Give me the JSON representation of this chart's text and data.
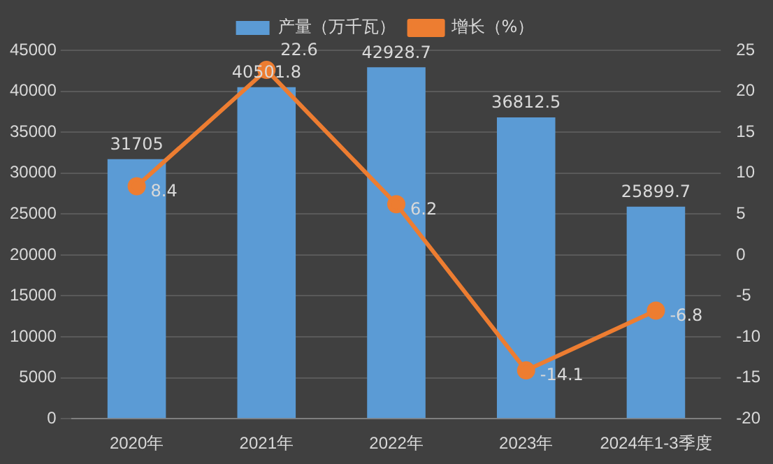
{
  "chart_data": {
    "type": "bar",
    "categories": [
      "2020年",
      "2021年",
      "2022年",
      "2023年",
      "2024年1-3季度"
    ],
    "series": [
      {
        "name": "产量（万千瓦）",
        "color": "#5b9bd5",
        "values": [
          31705,
          40501.8,
          42928.7,
          36812.5,
          25899.7
        ]
      },
      {
        "name": "增长（%）",
        "type": "line",
        "axis": "y2",
        "color": "#ed7d31",
        "values": [
          8.4,
          22.6,
          6.2,
          -14.1,
          -6.8
        ]
      }
    ],
    "ylim": [
      0,
      45000
    ],
    "yticks": [
      0,
      5000,
      10000,
      15000,
      20000,
      25000,
      30000,
      35000,
      40000,
      45000
    ],
    "y2lim": [
      -20,
      25
    ],
    "y2ticks": [
      -20,
      -15,
      -10,
      -5,
      0,
      5,
      10,
      15,
      20,
      25
    ],
    "grid": "y",
    "legend": "top",
    "marker": "circle",
    "line_style": "solid",
    "data_labels": true
  }
}
